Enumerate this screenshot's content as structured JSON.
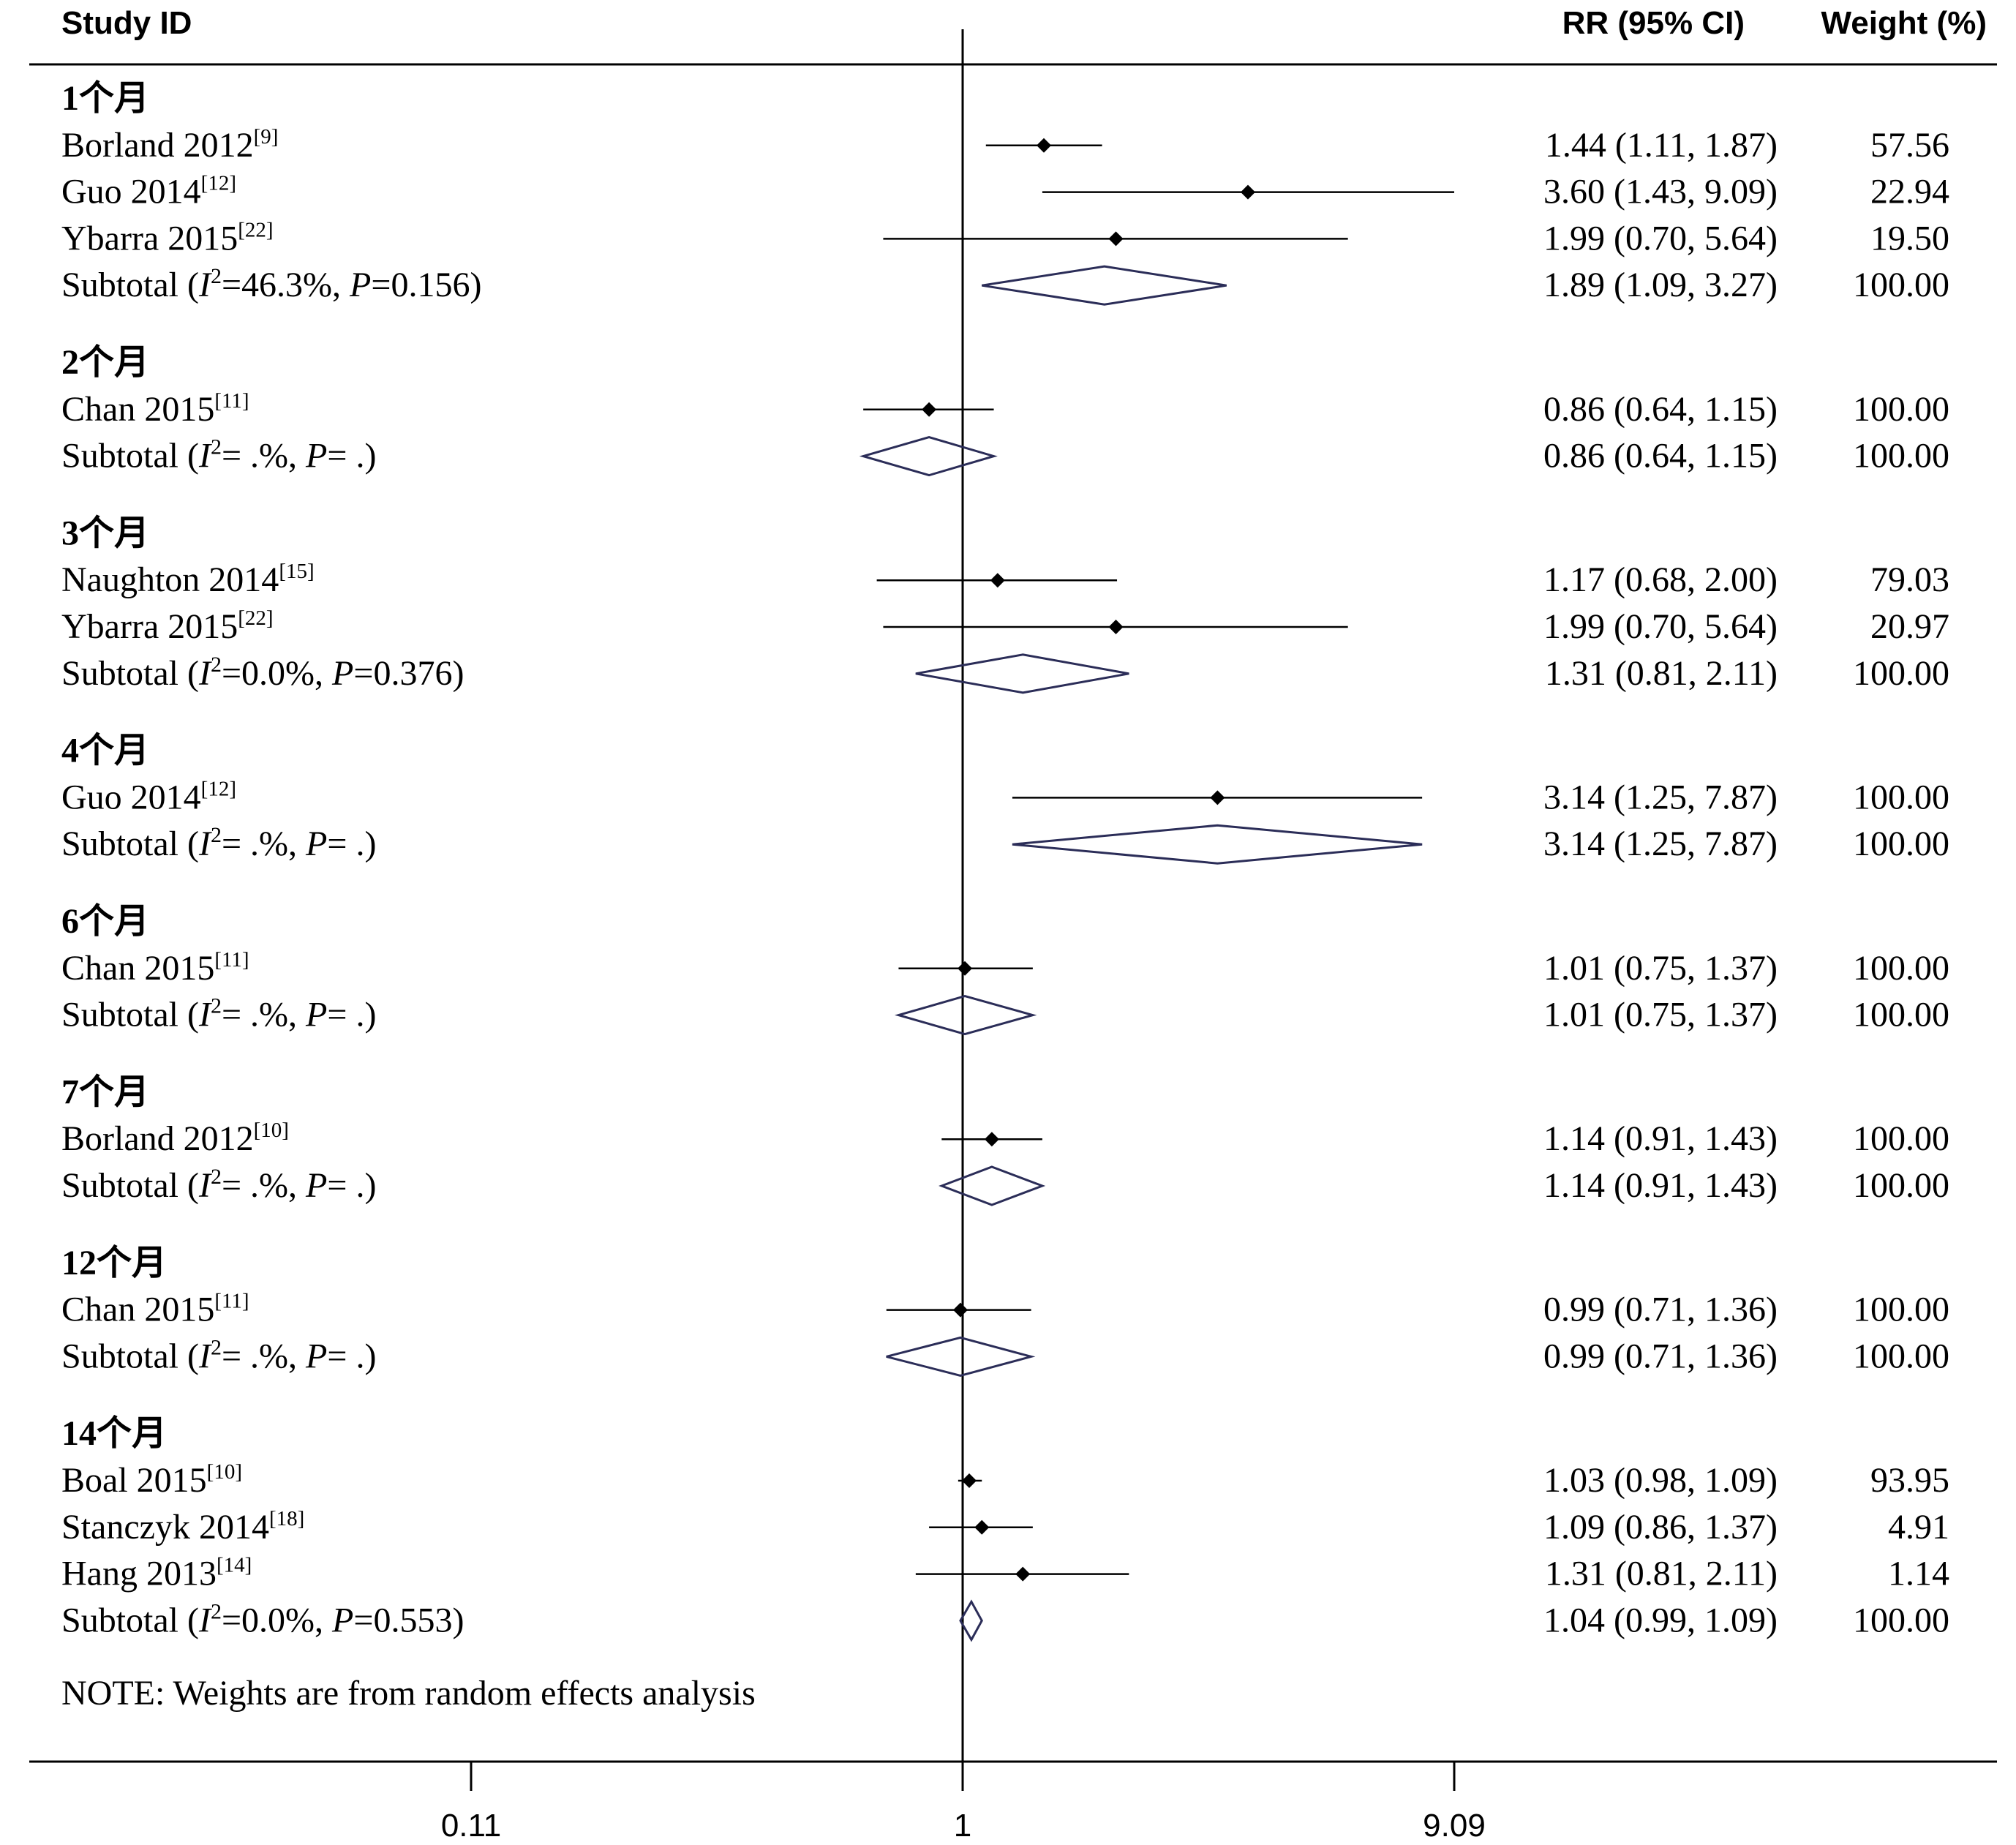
{
  "header": {
    "study_id": "Study ID",
    "rr": "RR (95% CI)",
    "weight": "Weight (%)"
  },
  "note": "NOTE: Weights are from random effects analysis",
  "chart_data": {
    "type": "forest",
    "effect_measure": "RR",
    "x_scale": "log",
    "xlim": [
      0.11,
      9.09
    ],
    "x_ticks": [
      0.11,
      1,
      9.09
    ],
    "x_tick_labels": [
      "0.11",
      "1",
      "9.09"
    ],
    "reference_line": 1,
    "groups": [
      {
        "label": "1个月",
        "studies": [
          {
            "author": "Borland 2012",
            "ref": "[9]",
            "rr": 1.44,
            "lo": 1.11,
            "hi": 1.87,
            "text": "1.44 (1.11, 1.87)",
            "weight": "57.56"
          },
          {
            "author": "Guo 2014",
            "ref": "[12]",
            "rr": 3.6,
            "lo": 1.43,
            "hi": 9.09,
            "text": "3.60 (1.43, 9.09)",
            "weight": "22.94"
          },
          {
            "author": "Ybarra 2015",
            "ref": "[22]",
            "rr": 1.99,
            "lo": 0.7,
            "hi": 5.64,
            "text": "1.99 (0.70, 5.64)",
            "weight": "19.50"
          }
        ],
        "subtotal": {
          "label": "Subtotal",
          "i2": "46.3%",
          "p": "0.156",
          "rr": 1.89,
          "lo": 1.09,
          "hi": 3.27,
          "text": "1.89 (1.09, 3.27)",
          "weight": "100.00"
        }
      },
      {
        "label": "2个月",
        "studies": [
          {
            "author": "Chan 2015",
            "ref": "[11]",
            "rr": 0.86,
            "lo": 0.64,
            "hi": 1.15,
            "text": "0.86 (0.64, 1.15)",
            "weight": "100.00"
          }
        ],
        "subtotal": {
          "label": "Subtotal",
          "i2": " .%",
          "p": " .",
          "rr": 0.86,
          "lo": 0.64,
          "hi": 1.15,
          "text": "0.86 (0.64, 1.15)",
          "weight": "100.00"
        }
      },
      {
        "label": "3个月",
        "studies": [
          {
            "author": "Naughton 2014",
            "ref": "[15]",
            "rr": 1.17,
            "lo": 0.68,
            "hi": 2.0,
            "text": "1.17 (0.68, 2.00)",
            "weight": "79.03"
          },
          {
            "author": "Ybarra 2015",
            "ref": "[22]",
            "rr": 1.99,
            "lo": 0.7,
            "hi": 5.64,
            "text": "1.99 (0.70, 5.64)",
            "weight": "20.97"
          }
        ],
        "subtotal": {
          "label": "Subtotal",
          "i2": "0.0%",
          "p": "0.376",
          "rr": 1.31,
          "lo": 0.81,
          "hi": 2.11,
          "text": "1.31 (0.81, 2.11)",
          "weight": "100.00"
        }
      },
      {
        "label": "4个月",
        "studies": [
          {
            "author": "Guo 2014",
            "ref": "[12]",
            "rr": 3.14,
            "lo": 1.25,
            "hi": 7.87,
            "text": "3.14 (1.25, 7.87)",
            "weight": "100.00"
          }
        ],
        "subtotal": {
          "label": "Subtotal",
          "i2": " .%",
          "p": " .",
          "rr": 3.14,
          "lo": 1.25,
          "hi": 7.87,
          "text": "3.14 (1.25, 7.87)",
          "weight": "100.00"
        }
      },
      {
        "label": "6个月",
        "studies": [
          {
            "author": "Chan 2015",
            "ref": "[11]",
            "rr": 1.01,
            "lo": 0.75,
            "hi": 1.37,
            "text": "1.01 (0.75, 1.37)",
            "weight": "100.00"
          }
        ],
        "subtotal": {
          "label": "Subtotal",
          "i2": " .%",
          "p": " .",
          "rr": 1.01,
          "lo": 0.75,
          "hi": 1.37,
          "text": "1.01 (0.75, 1.37)",
          "weight": "100.00"
        }
      },
      {
        "label": "7个月",
        "studies": [
          {
            "author": "Borland 2012",
            "ref": "[10]",
            "rr": 1.14,
            "lo": 0.91,
            "hi": 1.43,
            "text": "1.14 (0.91, 1.43)",
            "weight": "100.00"
          }
        ],
        "subtotal": {
          "label": "Subtotal",
          "i2": " .%",
          "p": " .",
          "rr": 1.14,
          "lo": 0.91,
          "hi": 1.43,
          "text": "1.14 (0.91, 1.43)",
          "weight": "100.00"
        }
      },
      {
        "label": "12个月",
        "studies": [
          {
            "author": "Chan 2015",
            "ref": "[11]",
            "rr": 0.99,
            "lo": 0.71,
            "hi": 1.36,
            "text": "0.99 (0.71, 1.36)",
            "weight": "100.00"
          }
        ],
        "subtotal": {
          "label": "Subtotal",
          "i2": " .%",
          "p": " .",
          "rr": 0.99,
          "lo": 0.71,
          "hi": 1.36,
          "text": "0.99 (0.71, 1.36)",
          "weight": "100.00"
        }
      },
      {
        "label": "14个月",
        "studies": [
          {
            "author": "Boal 2015",
            "ref": "[10]",
            "rr": 1.03,
            "lo": 0.98,
            "hi": 1.09,
            "text": "1.03 (0.98, 1.09)",
            "weight": "93.95"
          },
          {
            "author": "Stanczyk 2014",
            "ref": "[18]",
            "rr": 1.09,
            "lo": 0.86,
            "hi": 1.37,
            "text": "1.09 (0.86, 1.37)",
            "weight": "4.91"
          },
          {
            "author": "Hang 2013",
            "ref": "[14]",
            "rr": 1.31,
            "lo": 0.81,
            "hi": 2.11,
            "text": "1.31 (0.81, 2.11)",
            "weight": "1.14"
          }
        ],
        "subtotal": {
          "label": "Subtotal",
          "i2": "0.0%",
          "p": "0.553",
          "rr": 1.04,
          "lo": 0.99,
          "hi": 1.09,
          "text": "1.04 (0.99, 1.09)",
          "weight": "100.00"
        }
      }
    ]
  }
}
